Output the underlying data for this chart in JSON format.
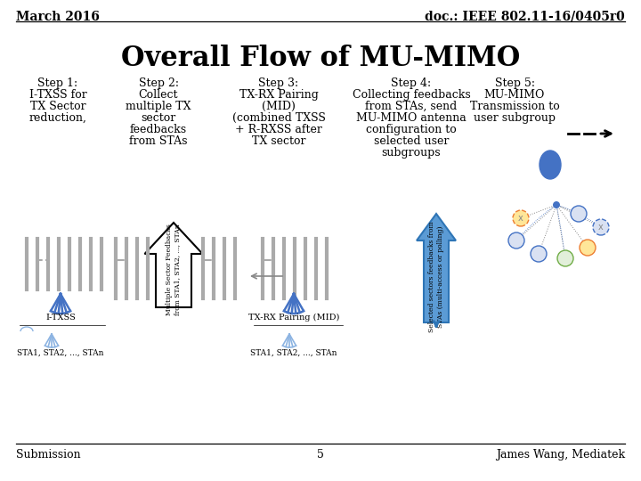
{
  "header_left": "March 2016",
  "header_right": "doc.: IEEE 802.11-16/0405r0",
  "title": "Overall Flow of MU-MIMO",
  "footer_left": "Submission",
  "footer_center": "5",
  "footer_right": "James Wang, Mediatek",
  "steps": [
    {
      "label": "Step 1:",
      "lines": [
        "I-TXSS for",
        "TX Sector",
        "reduction,"
      ]
    },
    {
      "label": "Step 2:",
      "lines": [
        "Collect",
        "multiple TX",
        "sector",
        "feedbacks",
        "from STAs"
      ]
    },
    {
      "label": "Step 3:",
      "lines": [
        "TX-RX Pairing",
        "(MID)",
        "(combined TXSS",
        "+ R-RXSS after",
        "TX sector"
      ]
    },
    {
      "label": "Step 4:",
      "lines": [
        "Collecting feedbacks",
        "from STAs, send",
        "MU-MIMO antenna",
        "configuration to",
        "selected user",
        "subgroups"
      ]
    },
    {
      "label": "Step 5:",
      "lines": [
        "MU-MIMO",
        "Transmission to",
        "user subgroup"
      ]
    }
  ],
  "step_x": [
    65,
    178,
    313,
    462,
    578
  ],
  "bg_color": "#ffffff",
  "header_line_color": "#000000",
  "footer_line_color": "#000000",
  "title_fontsize": 22,
  "header_fontsize": 10,
  "step_label_fontsize": 9,
  "step_text_fontsize": 9,
  "footer_fontsize": 9,
  "arrow_color": "#000000",
  "blue_color": "#4472C4",
  "light_blue": "#5B9BD5"
}
